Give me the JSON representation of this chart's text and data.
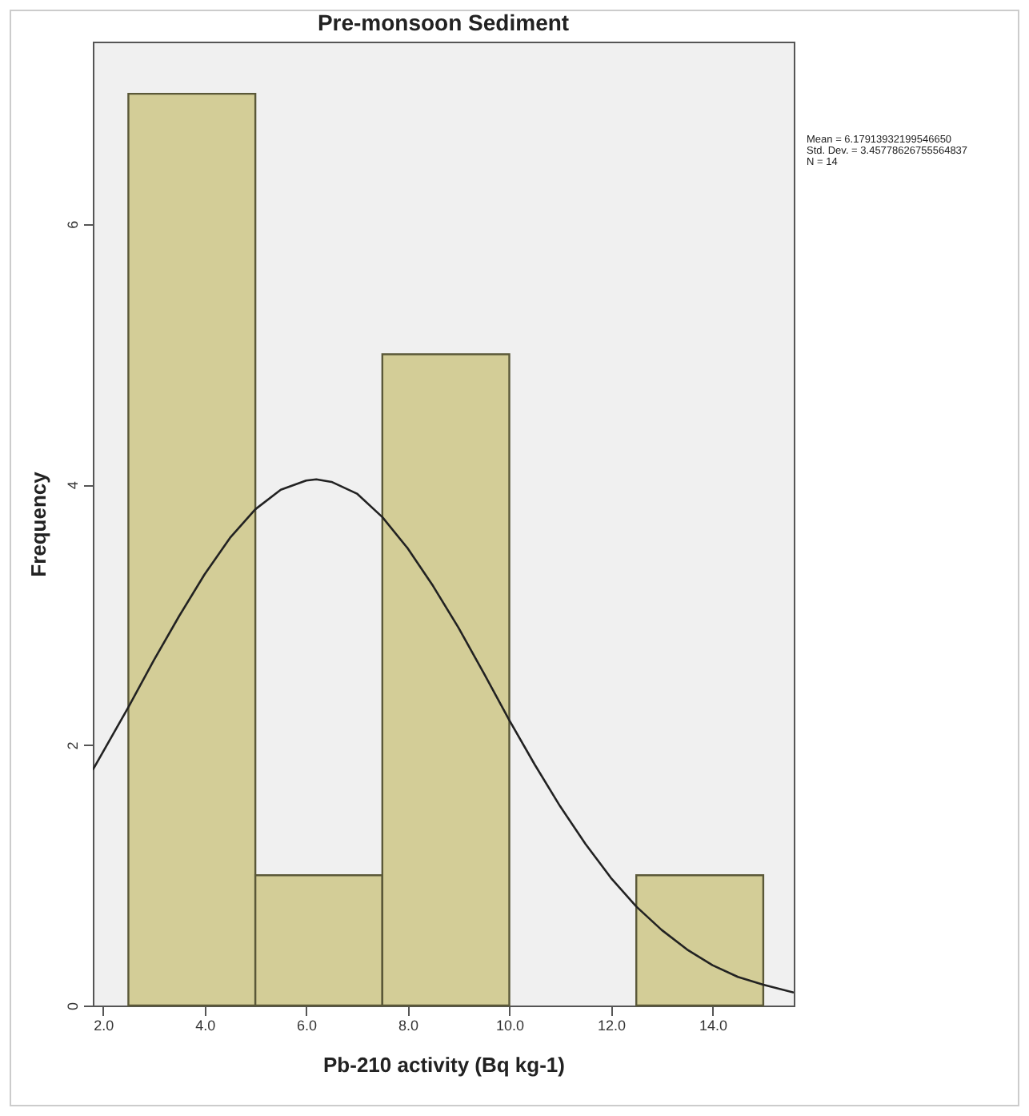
{
  "chart_data": {
    "type": "histogram",
    "title": "Pre-monsoon Sediment",
    "xlabel": "Pb-210 activity (Bq kg-1)",
    "ylabel": "Frequency",
    "annotations": [
      "Mean = 6.17913932199546650",
      "Std. Dev. = 3.45778626755564837",
      "N = 14"
    ],
    "bins": [
      2.5,
      5,
      7.5,
      10,
      12.5,
      15
    ],
    "values": [
      7,
      1,
      5,
      0,
      1
    ],
    "color": "#d3cd97",
    "series": [
      {
        "type": "line",
        "color": "#222222",
        "x": [
          1.8,
          2.5,
          3,
          3.5,
          4,
          4.5,
          5,
          5.5,
          6,
          6.2,
          6.5,
          7,
          7.5,
          8,
          8.5,
          9,
          9.5,
          10,
          10.5,
          11,
          11.5,
          12,
          12.5,
          13,
          13.5,
          14,
          14.5,
          15,
          15.6
        ],
        "values": [
          1.81,
          2.29,
          2.65,
          2.99,
          3.31,
          3.59,
          3.81,
          3.96,
          4.03,
          4.04,
          4.02,
          3.93,
          3.75,
          3.51,
          3.22,
          2.9,
          2.55,
          2.19,
          1.85,
          1.53,
          1.24,
          0.98,
          0.76,
          0.58,
          0.43,
          0.31,
          0.22,
          0.16,
          0.1
        ]
      }
    ],
    "xlim": [
      1.8,
      15.6
    ],
    "xticks": [
      {
        "value": 2,
        "label": "2.0"
      },
      {
        "value": 4,
        "label": "4.0"
      },
      {
        "value": 6,
        "label": "6.0"
      },
      {
        "value": 8,
        "label": "8.0"
      },
      {
        "value": 10,
        "label": "10.0"
      },
      {
        "value": 12,
        "label": "12.0"
      },
      {
        "value": 14,
        "label": "14.0"
      }
    ],
    "ylim": [
      0,
      7.4
    ],
    "yticks": [
      0,
      2,
      4,
      6
    ]
  }
}
